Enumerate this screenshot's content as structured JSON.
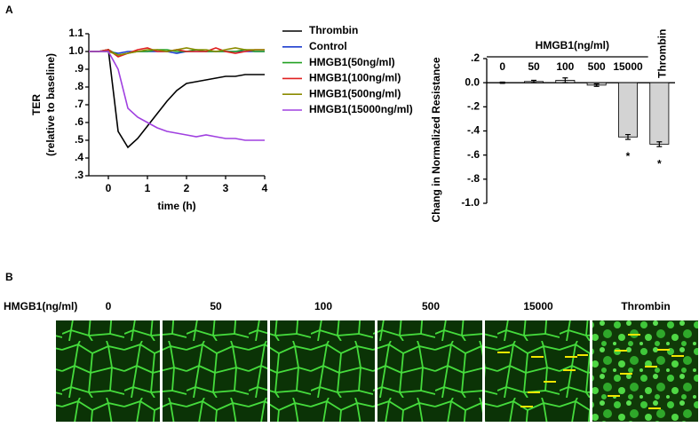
{
  "panel_labels": [
    "A",
    "B"
  ],
  "chart_data": [
    {
      "type": "line",
      "ylabel": [
        "TER",
        "(relative to baseline)"
      ],
      "xlabel": "time (h)",
      "x": [
        -0.5,
        -0.25,
        0,
        0.25,
        0.5,
        0.75,
        1,
        1.25,
        1.5,
        1.75,
        2,
        2.25,
        2.5,
        2.75,
        3,
        3.25,
        3.5,
        3.75,
        4
      ],
      "xlim": [
        -0.5,
        4
      ],
      "xticks": [
        0,
        1,
        2,
        3,
        4
      ],
      "ylim": [
        0.3,
        1.1
      ],
      "yticks": [
        {
          "value": 0.3,
          "label": ".3"
        },
        {
          "value": 0.4,
          "label": ".4"
        },
        {
          "value": 0.5,
          "label": ".5"
        },
        {
          "value": 0.6,
          "label": ".6"
        },
        {
          "value": 0.7,
          "label": ".7"
        },
        {
          "value": 0.8,
          "label": ".8"
        },
        {
          "value": 0.9,
          "label": ".9"
        },
        {
          "value": 1.0,
          "label": "1.0"
        },
        1.1
      ],
      "series": [
        {
          "name": "Thrombin",
          "color": "#000000",
          "values": [
            1.0,
            1.0,
            1.01,
            0.55,
            0.46,
            0.51,
            0.58,
            0.65,
            0.72,
            0.78,
            0.82,
            0.83,
            0.84,
            0.85,
            0.86,
            0.86,
            0.87,
            0.87,
            0.87
          ]
        },
        {
          "name": "Control",
          "color": "#1f3fcf",
          "values": [
            1.0,
            1.0,
            1.0,
            0.99,
            1.0,
            1.0,
            1.0,
            1.0,
            1.0,
            0.99,
            1.0,
            1.0,
            1.0,
            1.0,
            1.0,
            1.0,
            1.0,
            1.0,
            1.0
          ]
        },
        {
          "name": "HMGB1(50ng/ml)",
          "color": "#22a022",
          "values": [
            1.0,
            1.0,
            1.01,
            0.98,
            0.99,
            1.0,
            1.0,
            1.01,
            1.01,
            1.0,
            1.0,
            1.01,
            1.0,
            1.0,
            1.0,
            1.0,
            1.01,
            1.0,
            1.0
          ]
        },
        {
          "name": "HMGB1(100ng/ml)",
          "color": "#e02020",
          "values": [
            1.0,
            1.0,
            1.01,
            0.97,
            0.99,
            1.01,
            1.02,
            1.0,
            1.0,
            1.01,
            1.0,
            1.0,
            1.0,
            1.02,
            1.0,
            0.99,
            1.0,
            1.01,
            1.01
          ]
        },
        {
          "name": "HMGB1(500ng/ml)",
          "color": "#8b8b00",
          "values": [
            1.0,
            1.0,
            1.0,
            0.98,
            0.99,
            1.0,
            1.01,
            1.01,
            1.0,
            1.01,
            1.02,
            1.01,
            1.01,
            1.0,
            1.01,
            1.02,
            1.01,
            1.01,
            1.01
          ]
        },
        {
          "name": "HMGB1(15000ng/ml)",
          "color": "#a040e0",
          "values": [
            1.0,
            1.0,
            1.0,
            0.9,
            0.68,
            0.63,
            0.6,
            0.57,
            0.55,
            0.54,
            0.53,
            0.52,
            0.53,
            0.52,
            0.51,
            0.51,
            0.5,
            0.5,
            0.5
          ]
        }
      ]
    },
    {
      "type": "bar",
      "ylabel": "Chang in Normalized Resistance",
      "group_label": "HMGB1(ng/ml)",
      "categories": [
        "0",
        "50",
        "100",
        "500",
        "15000",
        "Thrombin"
      ],
      "values": [
        0,
        0.01,
        0.02,
        -0.02,
        -0.45,
        -0.51
      ],
      "errors": [
        0.005,
        0.01,
        0.02,
        0.01,
        0.02,
        0.02
      ],
      "significance": [
        null,
        null,
        null,
        null,
        "*",
        "*"
      ],
      "color": "#d3d3d3",
      "ylim": [
        -1.0,
        0.2
      ],
      "yticks": [
        {
          "value": 0.2,
          "label": ".2"
        },
        {
          "value": 0.0,
          "label": "0.0"
        },
        {
          "value": -0.2,
          "label": "-.2"
        },
        {
          "value": -0.4,
          "label": "-.4"
        },
        {
          "value": -0.6,
          "label": "-.6"
        },
        {
          "value": -0.8,
          "label": "-.8"
        },
        {
          "value": -1.0,
          "label": "-1.0"
        }
      ]
    }
  ],
  "images": {
    "row_label": "HMGB1(ng/ml)",
    "columns": [
      "0",
      "50",
      "100",
      "500",
      "15000",
      "Thrombin"
    ]
  }
}
